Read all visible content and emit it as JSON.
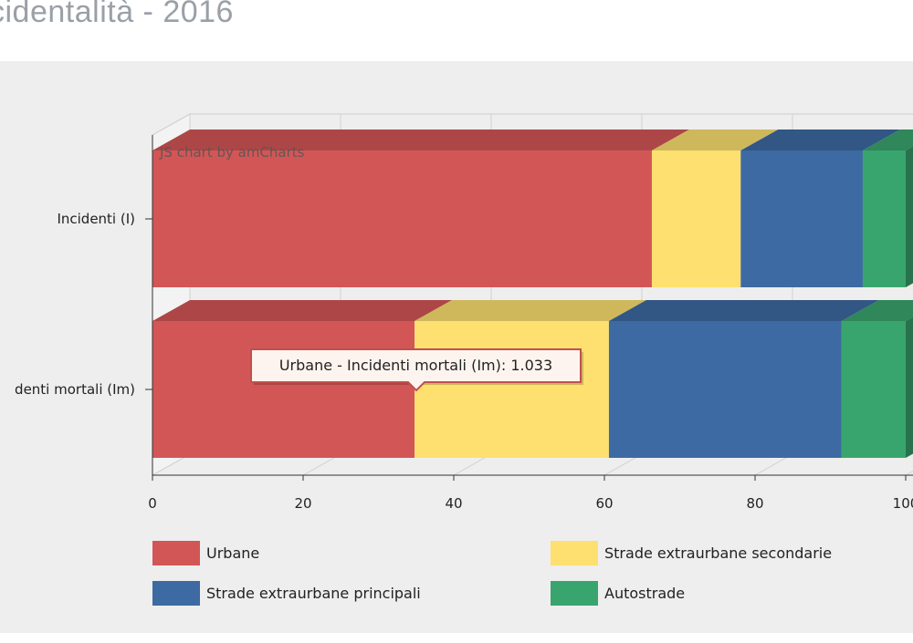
{
  "page": {
    "title": "cidentalità - 2016"
  },
  "chart_data": {
    "type": "bar",
    "orientation": "horizontal",
    "stacked": "100%",
    "style": "3d",
    "categories": [
      "Incidenti (I)",
      "Incidenti mortali (Im)"
    ],
    "category_labels": [
      "Incidenti (I)",
      "denti mortali (Im)"
    ],
    "series": [
      {
        "name": "Urbane",
        "values": [
          66.3,
          34.8
        ],
        "color": "#d35656"
      },
      {
        "name": "Strade extraurbane secondarie",
        "values": [
          11.8,
          25.8
        ],
        "color": "#fde070"
      },
      {
        "name": "Strade extraurbane principali",
        "values": [
          16.2,
          30.9
        ],
        "color": "#3d6aa2"
      },
      {
        "name": "Autostrade",
        "values": [
          5.7,
          8.5
        ],
        "color": "#39a56e"
      }
    ],
    "xlim": [
      0,
      100
    ],
    "x_ticks": [
      "0",
      "20",
      "40",
      "60",
      "80",
      "100"
    ],
    "grid": true,
    "legend_position": "bottom",
    "watermark": "JS chart by amCharts",
    "tooltip": {
      "text": "Urbane - Incidenti mortali (Im): 1.033",
      "series": "Urbane",
      "category": "Incidenti mortali (Im)"
    }
  }
}
